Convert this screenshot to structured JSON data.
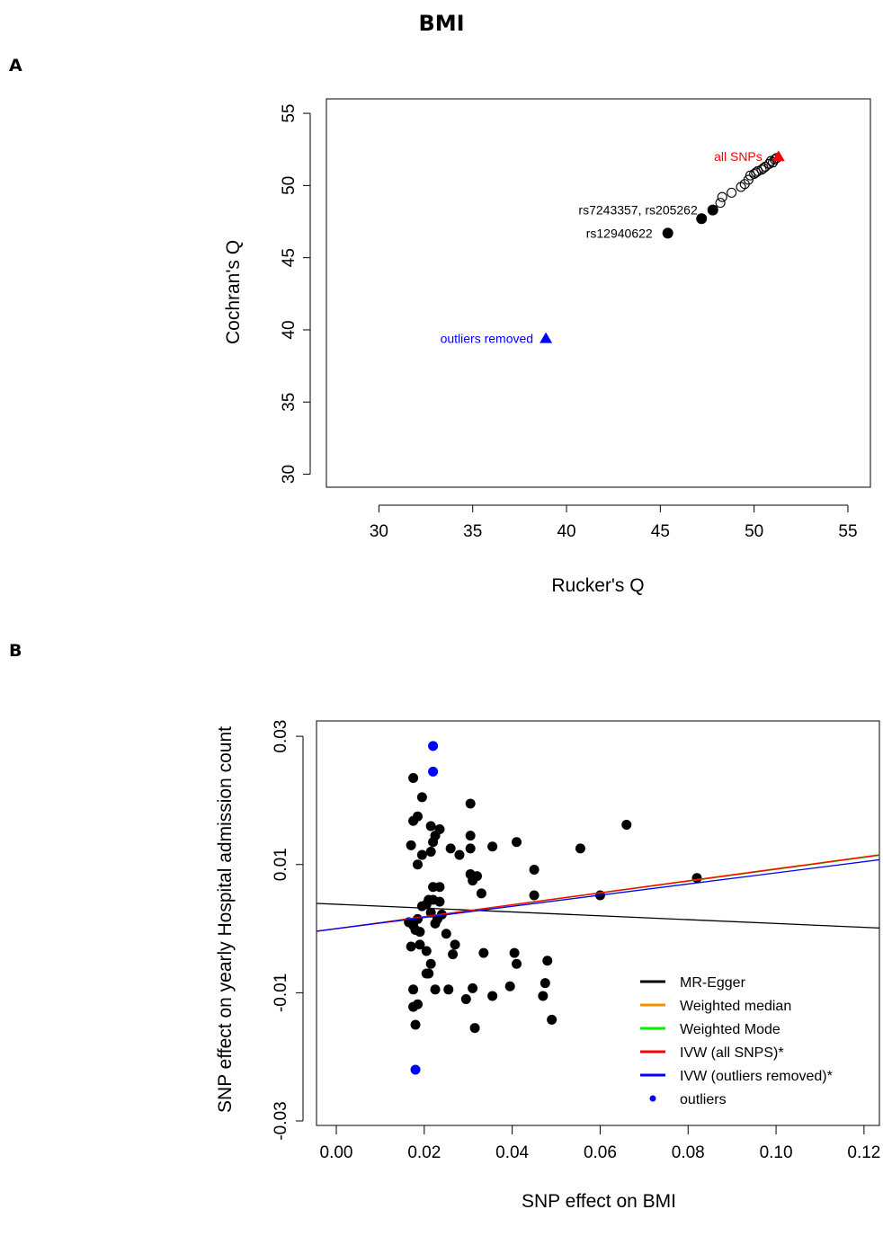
{
  "page": {
    "title": "BMI"
  },
  "panels": {
    "a_label": "A",
    "b_label": "B"
  },
  "chart_data": [
    {
      "id": "panel-a",
      "type": "scatter",
      "xlabel": "Rucker's Q",
      "ylabel": "Cochran's Q",
      "xlim": [
        27.2,
        56.2
      ],
      "ylim": [
        29.1,
        56.0
      ],
      "xticks": [
        30,
        35,
        40,
        45,
        50,
        55
      ],
      "yticks": [
        30,
        35,
        40,
        45,
        50,
        55
      ],
      "grid": false,
      "series": [
        {
          "name": "",
          "marker": "circle-open",
          "color": "#000000",
          "points": [
            [
              48.2,
              48.8
            ],
            [
              48.3,
              49.2
            ],
            [
              48.8,
              49.5
            ],
            [
              49.3,
              49.9
            ],
            [
              49.5,
              50.1
            ],
            [
              49.7,
              50.4
            ],
            [
              49.8,
              50.7
            ],
            [
              50.0,
              50.8
            ],
            [
              50.2,
              51.0
            ],
            [
              50.4,
              51.1
            ],
            [
              50.6,
              51.3
            ],
            [
              50.8,
              51.5
            ],
            [
              51.0,
              51.6
            ],
            [
              51.1,
              51.8
            ],
            [
              51.2,
              51.9
            ],
            [
              50.1,
              50.9
            ],
            [
              50.5,
              51.2
            ],
            [
              50.9,
              51.7
            ]
          ]
        },
        {
          "name": "",
          "marker": "circle-filled",
          "color": "#000000",
          "points": [
            [
              45.4,
              46.7
            ],
            [
              47.2,
              47.7
            ],
            [
              47.8,
              48.3
            ]
          ]
        },
        {
          "name": "",
          "marker": "triangle-filled",
          "color": "#0000ff",
          "points": [
            [
              38.9,
              39.4
            ]
          ]
        },
        {
          "name": "",
          "marker": "triangle-filled",
          "color": "#ff0000",
          "points": [
            [
              51.3,
              52.0
            ]
          ]
        }
      ],
      "annotations": [
        {
          "text": "rs7243357, rs205262",
          "x": 47.8,
          "y": 48.3,
          "color": "#000000"
        },
        {
          "text": "rs12940622",
          "x": 45.4,
          "y": 46.7,
          "color": "#000000"
        },
        {
          "text": "outliers removed",
          "x": 38.9,
          "y": 39.4,
          "color": "#0000ff"
        },
        {
          "text": "all SNPs",
          "x": 51.3,
          "y": 52.0,
          "color": "#ff0000"
        }
      ]
    },
    {
      "id": "panel-b",
      "type": "scatter",
      "xlabel": "SNP effect on BMI",
      "ylabel": "SNP effect on yearly Hospital admission count",
      "xlim": [
        -0.0045,
        0.1235
      ],
      "ylim": [
        -0.0307,
        0.0324
      ],
      "xticks": [
        0.0,
        0.02,
        0.04,
        0.06,
        0.08,
        0.1,
        0.12
      ],
      "xtick_labels": [
        "0.00",
        "0.02",
        "0.04",
        "0.06",
        "0.08",
        "0.10",
        "0.12"
      ],
      "yticks": [
        -0.03,
        -0.01,
        0.01,
        0.03
      ],
      "ytick_labels": [
        "-0.03",
        "-0.01",
        "0.01",
        "0.03"
      ],
      "grid": false,
      "legend_position": "bottom-right",
      "points": [
        [
          0.0175,
          0.0235
        ],
        [
          0.0195,
          0.0205
        ],
        [
          0.0175,
          0.0168
        ],
        [
          0.0185,
          0.0175
        ],
        [
          0.0215,
          0.016
        ],
        [
          0.0235,
          0.0155
        ],
        [
          0.0225,
          0.0145
        ],
        [
          0.022,
          0.0135
        ],
        [
          0.017,
          0.013
        ],
        [
          0.0195,
          0.0115
        ],
        [
          0.0185,
          0.01
        ],
        [
          0.0215,
          0.012
        ],
        [
          0.026,
          0.0125
        ],
        [
          0.028,
          0.0115
        ],
        [
          0.0305,
          0.0195
        ],
        [
          0.0305,
          0.0145
        ],
        [
          0.0305,
          0.0125
        ],
        [
          0.0355,
          0.0128
        ],
        [
          0.041,
          0.0135
        ],
        [
          0.0555,
          0.0125
        ],
        [
          0.066,
          0.0162
        ],
        [
          0.045,
          0.0092
        ],
        [
          0.0305,
          0.0085
        ],
        [
          0.031,
          0.0075
        ],
        [
          0.032,
          0.0082
        ],
        [
          0.033,
          0.0055
        ],
        [
          0.0235,
          0.0065
        ],
        [
          0.022,
          0.0065
        ],
        [
          0.045,
          0.0052
        ],
        [
          0.06,
          0.0052
        ],
        [
          0.082,
          0.0079
        ],
        [
          0.0195,
          0.0035
        ],
        [
          0.0205,
          0.0038
        ],
        [
          0.022,
          0.0045
        ],
        [
          0.021,
          0.0045
        ],
        [
          0.0235,
          0.0042
        ],
        [
          0.0215,
          0.0025
        ],
        [
          0.0185,
          0.0015
        ],
        [
          0.0165,
          0.001
        ],
        [
          0.0175,
          0.0005
        ],
        [
          0.018,
          -0.0002
        ],
        [
          0.019,
          -0.0005
        ],
        [
          0.0225,
          0.0008
        ],
        [
          0.023,
          0.0015
        ],
        [
          0.024,
          0.0022
        ],
        [
          0.025,
          -0.0008
        ],
        [
          0.027,
          -0.0025
        ],
        [
          0.0265,
          -0.004
        ],
        [
          0.0205,
          -0.0035
        ],
        [
          0.017,
          -0.0028
        ],
        [
          0.019,
          -0.0025
        ],
        [
          0.0215,
          -0.0055
        ],
        [
          0.0205,
          -0.007
        ],
        [
          0.021,
          -0.007
        ],
        [
          0.0335,
          -0.0038
        ],
        [
          0.0405,
          -0.0038
        ],
        [
          0.041,
          -0.0055
        ],
        [
          0.048,
          -0.005
        ],
        [
          0.0175,
          -0.0095
        ],
        [
          0.0185,
          -0.0118
        ],
        [
          0.0175,
          -0.0122
        ],
        [
          0.018,
          -0.015
        ],
        [
          0.0225,
          -0.0095
        ],
        [
          0.0255,
          -0.0095
        ],
        [
          0.0295,
          -0.011
        ],
        [
          0.031,
          -0.0093
        ],
        [
          0.0355,
          -0.0105
        ],
        [
          0.0395,
          -0.009
        ],
        [
          0.0475,
          -0.0085
        ],
        [
          0.047,
          -0.0105
        ],
        [
          0.049,
          -0.0142
        ],
        [
          0.0315,
          -0.0155
        ]
      ],
      "outliers": [
        [
          0.022,
          0.0285
        ],
        [
          0.022,
          0.0245
        ],
        [
          0.018,
          -0.022
        ]
      ],
      "lines": [
        {
          "name": "MR-Egger",
          "color": "#000000",
          "intercept": 0.0038,
          "slope": -0.03
        },
        {
          "name": "Weighted median",
          "color": "#ff8c00",
          "intercept": 0.0,
          "slope": 0.0935
        },
        {
          "name": "Weighted Mode",
          "color": "#00ee00",
          "intercept": 0.0,
          "slope": 0.0925
        },
        {
          "name": "IVW (all SNPS)*",
          "color": "#ff0000",
          "intercept": 0.0,
          "slope": 0.093
        },
        {
          "name": "IVW (outliers removed)*",
          "color": "#0000ff",
          "intercept": 0.0,
          "slope": 0.087
        }
      ],
      "legend": [
        {
          "label": "MR-Egger",
          "color": "#000000",
          "kind": "line"
        },
        {
          "label": "Weighted median",
          "color": "#ff8c00",
          "kind": "line"
        },
        {
          "label": "Weighted Mode",
          "color": "#00ee00",
          "kind": "line"
        },
        {
          "label": "IVW (all SNPS)*",
          "color": "#ff0000",
          "kind": "line"
        },
        {
          "label": "IVW (outliers removed)*",
          "color": "#0000ff",
          "kind": "line"
        },
        {
          "label": "outliers",
          "color": "#0000ff",
          "kind": "point"
        }
      ]
    }
  ]
}
